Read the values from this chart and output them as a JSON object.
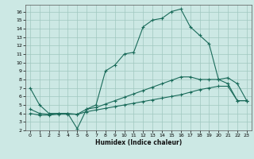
{
  "xlabel": "Humidex (Indice chaleur)",
  "bg_color": "#cce8e4",
  "line_color": "#1a6b5a",
  "grid_color": "#a0c8c0",
  "xlim": [
    -0.5,
    23.5
  ],
  "ylim": [
    2,
    16.8
  ],
  "xticks": [
    0,
    1,
    2,
    3,
    4,
    5,
    6,
    7,
    8,
    9,
    10,
    11,
    12,
    13,
    14,
    15,
    16,
    17,
    18,
    19,
    20,
    21,
    22,
    23
  ],
  "yticks": [
    2,
    3,
    4,
    5,
    6,
    7,
    8,
    9,
    10,
    11,
    12,
    13,
    14,
    15,
    16
  ],
  "curve1_x": [
    0,
    1,
    2,
    3,
    4,
    5,
    6,
    7,
    8,
    9,
    10,
    11,
    12,
    13,
    14,
    15,
    16,
    17,
    18,
    19,
    20,
    21,
    22,
    23
  ],
  "curve1_y": [
    7.0,
    5.0,
    4.0,
    4.0,
    4.0,
    2.2,
    4.5,
    5.0,
    9.0,
    9.7,
    11.0,
    11.2,
    14.2,
    15.0,
    15.2,
    16.0,
    16.3,
    14.2,
    13.2,
    12.2,
    8.0,
    8.2,
    7.5,
    5.5
  ],
  "curve2_x": [
    0,
    1,
    2,
    3,
    4,
    5,
    6,
    7,
    8,
    9,
    10,
    11,
    12,
    13,
    14,
    15,
    16,
    17,
    18,
    19,
    20,
    21,
    22,
    23
  ],
  "curve2_y": [
    4.0,
    3.8,
    3.8,
    3.9,
    3.9,
    3.9,
    4.2,
    4.4,
    4.6,
    4.8,
    5.0,
    5.2,
    5.4,
    5.6,
    5.8,
    6.0,
    6.2,
    6.5,
    6.8,
    7.0,
    7.2,
    7.2,
    5.5,
    5.5
  ],
  "curve3_x": [
    0,
    1,
    2,
    3,
    4,
    5,
    6,
    7,
    8,
    9,
    10,
    11,
    12,
    13,
    14,
    15,
    16,
    17,
    18,
    19,
    20,
    21,
    22,
    23
  ],
  "curve3_y": [
    4.5,
    4.0,
    3.9,
    4.0,
    4.0,
    3.9,
    4.5,
    4.7,
    5.1,
    5.5,
    5.9,
    6.3,
    6.7,
    7.1,
    7.5,
    7.9,
    8.3,
    8.3,
    8.0,
    8.0,
    8.0,
    7.5,
    5.5,
    5.5
  ]
}
